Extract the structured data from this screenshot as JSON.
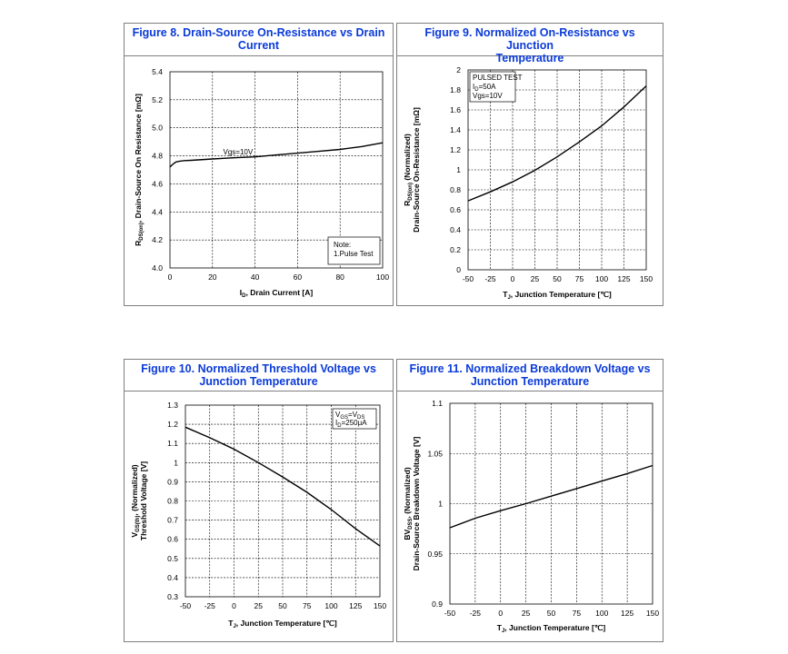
{
  "chart_data": [
    {
      "id": "fig8",
      "type": "line",
      "title": "Figure 8. Drain-Source On-Resistance vs Drain Current",
      "title_lines": [
        "Figure 8. Drain-Source On-Resistance vs Drain",
        "Current"
      ],
      "xlabel": "I_D, Drain Current [A]",
      "xlabel_parts": {
        "pre": "I",
        "sub": "D",
        "post": ", Drain Current [A]"
      },
      "ylabel": "R_DS(on), Drain-Source On Resistance [mΩ]",
      "ylabel_lines": [
        {
          "pre": "R",
          "sub": "DS(on)",
          "post": ", Drain-Source On Resistance [mΩ]"
        }
      ],
      "xlim": [
        0,
        100
      ],
      "ylim": [
        4.0,
        5.4
      ],
      "xticks": [
        0,
        20,
        40,
        60,
        80,
        100
      ],
      "xtick_labels": [
        "0",
        "20",
        "40",
        "60",
        "80",
        "100"
      ],
      "yticks": [
        4.0,
        4.2,
        4.4,
        4.6,
        4.8,
        5.0,
        5.2,
        5.4
      ],
      "ytick_labels": [
        "4.0",
        "4.2",
        "4.4",
        "4.6",
        "4.8",
        "5.0",
        "5.2",
        "5.4"
      ],
      "series": [
        {
          "name": "Vgs=10V",
          "x": [
            0,
            1,
            2,
            3,
            5,
            7,
            10,
            20,
            30,
            40,
            50,
            60,
            70,
            80,
            90,
            100
          ],
          "y": [
            4.72,
            4.735,
            4.748,
            4.757,
            4.763,
            4.766,
            4.768,
            4.778,
            4.786,
            4.793,
            4.806,
            4.819,
            4.832,
            4.846,
            4.866,
            4.893
          ]
        }
      ],
      "curve_label": "Vgs=10V",
      "curve_label_at": [
        25,
        4.81
      ],
      "annotation": {
        "lines": [
          "Note:",
          "1.Pulse Test"
        ]
      }
    },
    {
      "id": "fig9",
      "type": "line",
      "title": "Figure 9. Normalized On-Resistance vs Junction Temperature",
      "title_lines": [
        "Figure 9. Normalized On-Resistance vs Junction",
        "Temperature"
      ],
      "xlabel": "T_J, Junction Temperature [℃]",
      "xlabel_parts": {
        "pre": "T",
        "sub": "J",
        "post": ", Junction Temperature [℃]"
      },
      "ylabel": "R_DS(on) (Normalized) Drain-Source On-Resistance [mΩ]",
      "ylabel_lines": [
        {
          "pre": "R",
          "sub": "DS(on)",
          "post": " (Normalized)"
        },
        {
          "pre": "Drain-Source On-Resistance [mΩ]",
          "sub": "",
          "post": ""
        }
      ],
      "xlim": [
        -50,
        150
      ],
      "ylim": [
        0,
        2
      ],
      "xticks": [
        -50,
        -25,
        0,
        25,
        50,
        75,
        100,
        125,
        150
      ],
      "xtick_labels": [
        "-50",
        "-25",
        "0",
        "25",
        "50",
        "75",
        "100",
        "125",
        "150"
      ],
      "yticks": [
        0,
        0.2,
        0.4,
        0.6,
        0.8,
        1,
        1.2,
        1.4,
        1.6,
        1.8,
        2
      ],
      "ytick_labels": [
        "0",
        "0.2",
        "0.4",
        "0.6",
        "0.8",
        "1",
        "1.2",
        "1.4",
        "1.6",
        "1.8",
        "2"
      ],
      "series": [
        {
          "name": "PULSED TEST",
          "x": [
            -50,
            -25,
            0,
            25,
            50,
            75,
            100,
            125,
            150
          ],
          "y": [
            0.69,
            0.78,
            0.88,
            0.995,
            1.13,
            1.28,
            1.44,
            1.63,
            1.84
          ]
        }
      ],
      "annotation": {
        "lines": [
          "PULSED TEST",
          "I_D=50A",
          "Vgs=10V"
        ],
        "line_parts": [
          {
            "pre": "PULSED TEST",
            "sub": "",
            "post": ""
          },
          {
            "pre": "I",
            "sub": "D",
            "post": "=50A"
          },
          {
            "pre": "Vgs=10V",
            "sub": "",
            "post": ""
          }
        ]
      }
    },
    {
      "id": "fig10",
      "type": "line",
      "title": "Figure 10. Normalized Threshold Voltage vs Junction Temperature",
      "title_lines": [
        "Figure 10. Normalized Threshold Voltage vs",
        "Junction Temperature"
      ],
      "xlabel": "T_J, Junction Temperature [℃]",
      "xlabel_parts": {
        "pre": "T",
        "sub": "J",
        "post": ", Junction Temperature [℃]"
      },
      "ylabel": "V_GS(th), (Normalized) Threshold Voltage [V]",
      "ylabel_lines": [
        {
          "pre": "V",
          "sub": "GS(th)",
          "post": ", (Normalized)"
        },
        {
          "pre": "Threshold Voltage [V]",
          "sub": "",
          "post": ""
        }
      ],
      "xlim": [
        -50,
        150
      ],
      "ylim": [
        0.3,
        1.3
      ],
      "xticks": [
        -50,
        -25,
        0,
        25,
        50,
        75,
        100,
        125,
        150
      ],
      "xtick_labels": [
        "-50",
        "-25",
        "0",
        "25",
        "50",
        "75",
        "100",
        "125",
        "150"
      ],
      "yticks": [
        0.3,
        0.4,
        0.5,
        0.6,
        0.7,
        0.8,
        0.9,
        1,
        1.1,
        1.2,
        1.3
      ],
      "ytick_labels": [
        "0.3",
        "0.4",
        "0.5",
        "0.6",
        "0.7",
        "0.8",
        "0.9",
        "1",
        "1.1",
        "1.2",
        "1.3"
      ],
      "series": [
        {
          "name": "VGS=VDS",
          "x": [
            -50,
            -25,
            0,
            25,
            50,
            75,
            100,
            125,
            150
          ],
          "y": [
            1.185,
            1.13,
            1.07,
            1.0,
            0.925,
            0.845,
            0.755,
            0.655,
            0.565
          ]
        }
      ],
      "annotation": {
        "lines": [
          "V_GS=V_DS",
          "I_D=250μA"
        ],
        "line_parts": [
          {
            "pre": "V",
            "sub": "GS",
            "post": "=V",
            "sub2": "DS"
          },
          {
            "pre": "I",
            "sub": "D",
            "post": "=250μA",
            "sub2": ""
          }
        ]
      }
    },
    {
      "id": "fig11",
      "type": "line",
      "title": "Figure 11. Normalized Breakdown Voltage vs Junction Temperature",
      "title_lines": [
        "Figure 11. Normalized Breakdown Voltage vs",
        "Junction Temperature"
      ],
      "xlabel": "T_J, Junction Temperature [℃]",
      "xlabel_parts": {
        "pre": "T",
        "sub": "J",
        "post": ", Junction Temperature [℃]"
      },
      "ylabel": "BV_DSS, (Normalized) Drain-Source Breakdown Voltage [V]",
      "ylabel_lines": [
        {
          "pre": "BV",
          "sub": "DSS",
          "post": ", (Normalized)"
        },
        {
          "pre": "Drain-Source Breakdown Voltage [V]",
          "sub": "",
          "post": ""
        }
      ],
      "xlim": [
        -50,
        150
      ],
      "ylim": [
        0.9,
        1.1
      ],
      "xticks": [
        -50,
        -25,
        0,
        25,
        50,
        75,
        100,
        125,
        150
      ],
      "xtick_labels": [
        "-50",
        "-25",
        "0",
        "25",
        "50",
        "75",
        "100",
        "125",
        "150"
      ],
      "yticks": [
        0.9,
        0.95,
        1,
        1.05,
        1.1
      ],
      "ytick_labels": [
        "0.9",
        "0.95",
        "1",
        "1.05",
        "1.1"
      ],
      "series": [
        {
          "name": "BVDSS",
          "x": [
            -50,
            -25,
            0,
            25,
            50,
            75,
            100,
            125,
            150
          ],
          "y": [
            0.976,
            0.9855,
            0.993,
            1.0,
            1.0075,
            1.015,
            1.0225,
            1.03,
            1.038
          ]
        }
      ]
    }
  ]
}
